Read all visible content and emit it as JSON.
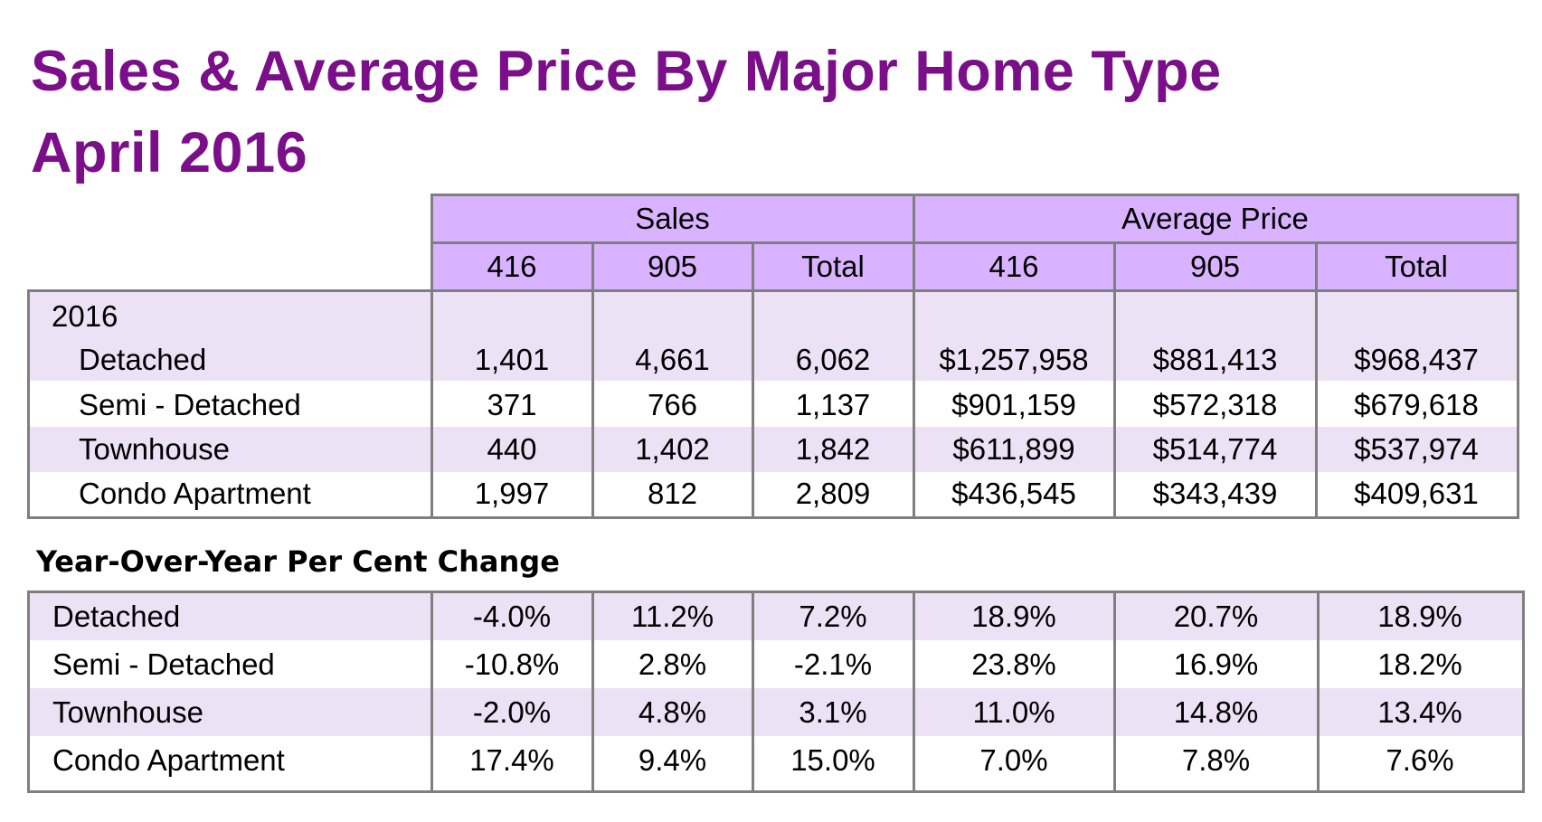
{
  "title": {
    "line1": "Sales & Average Price By Major Home Type",
    "line2": "April 2016"
  },
  "header": {
    "group_sales": "Sales",
    "group_avg_price": "Average Price",
    "columns": [
      "416",
      "905",
      "Total",
      "416",
      "905",
      "Total"
    ]
  },
  "year_label": "2016",
  "main_rows": [
    {
      "type": "Detached",
      "values": [
        "1,401",
        "4,661",
        "6,062",
        "$1,257,958",
        "$881,413",
        "$968,437"
      ]
    },
    {
      "type": "Semi - Detached",
      "values": [
        "371",
        "766",
        "1,137",
        "$901,159",
        "$572,318",
        "$679,618"
      ]
    },
    {
      "type": "Townhouse",
      "values": [
        "440",
        "1,402",
        "1,842",
        "$611,899",
        "$514,774",
        "$537,974"
      ]
    },
    {
      "type": "Condo Apartment",
      "values": [
        "1,997",
        "812",
        "2,809",
        "$436,545",
        "$343,439",
        "$409,631"
      ]
    }
  ],
  "yoy_heading": "Year-Over-Year Per Cent Change",
  "yoy_rows": [
    {
      "type": "Detached",
      "values": [
        "-4.0%",
        "11.2%",
        "7.2%",
        "18.9%",
        "20.7%",
        "18.9%"
      ]
    },
    {
      "type": "Semi - Detached",
      "values": [
        "-10.8%",
        "2.8%",
        "-2.1%",
        "23.8%",
        "16.9%",
        "18.2%"
      ]
    },
    {
      "type": "Townhouse",
      "values": [
        "-2.0%",
        "4.8%",
        "3.1%",
        "11.0%",
        "14.8%",
        "13.4%"
      ]
    },
    {
      "type": "Condo Apartment",
      "values": [
        "17.4%",
        "9.4%",
        "15.0%",
        "7.0%",
        "7.8%",
        "7.6%"
      ]
    }
  ],
  "colors": {
    "title": "#7b0f8a",
    "header_fill": "#d9b3ff",
    "band_fill": "#ede2f5",
    "border": "#7f7f7f"
  }
}
